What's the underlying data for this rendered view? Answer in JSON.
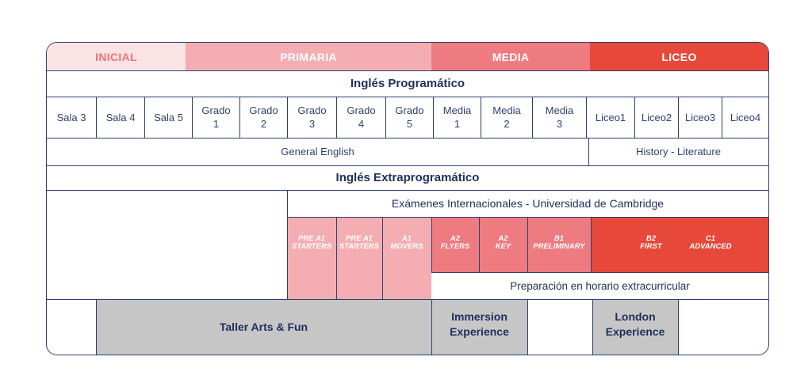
{
  "levels": [
    {
      "label": "INICIAL",
      "color": "#fbe2e4",
      "text_color": "#e87777"
    },
    {
      "label": "PRIMARIA",
      "color": "#f4aeb2",
      "text_color": "#ffffff"
    },
    {
      "label": "MEDIA",
      "color": "#ee7b80",
      "text_color": "#ffffff"
    },
    {
      "label": "LICEO",
      "color": "#e6483a",
      "text_color": "#ffffff"
    }
  ],
  "programatico": {
    "title": "Inglés Programático",
    "grades": [
      "Sala 3",
      "Sala 4",
      "Sala 5",
      "Grado\n1",
      "Grado\n2",
      "Grado\n3",
      "Grado\n4",
      "Grado\n5",
      "Media\n1",
      "Media\n2",
      "Media\n3",
      "Liceo1",
      "Liceo2",
      "Liceo3",
      "Liceo4"
    ],
    "general": "General English",
    "history": "History - Literature"
  },
  "extra": {
    "title": "Inglés Extraprogramático",
    "cambridge_title": "Exámenes Internacionales - Universidad de Cambridge",
    "exams": [
      {
        "label": "PRE A1\nSTARTERS"
      },
      {
        "label": "PRE A1\nSTARTERS"
      },
      {
        "label": "A1\nMOVERS"
      },
      {
        "label": "A2\nFLYERS"
      },
      {
        "label": "A2\nKEY"
      },
      {
        "label": "B1\nPRELIMINARY"
      },
      {
        "label": "B2\nFIRST"
      },
      {
        "label": "C1\nADVANCED"
      }
    ],
    "preparacion": "Preparación en horario extracurricular",
    "taller": "Taller Arts & Fun",
    "immersion": "Immersion\nExperience",
    "london": "London\nExperience"
  },
  "colors": {
    "border": "#2d3f70",
    "gray": "#c6c6c6"
  }
}
